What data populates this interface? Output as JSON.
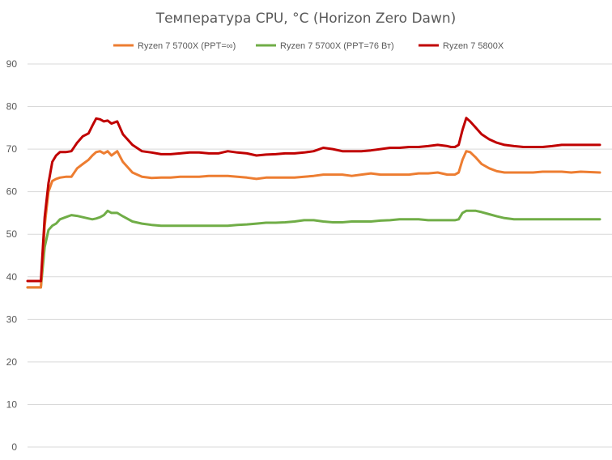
{
  "chart_data": {
    "type": "line",
    "title": "Температура CPU, °C (Horizon Zero Dawn)",
    "xlabel": "",
    "ylabel": "",
    "ylim": [
      0,
      90
    ],
    "yticks": [
      0,
      10,
      20,
      30,
      40,
      50,
      60,
      70,
      80,
      90
    ],
    "grid": true,
    "legend_position": "top",
    "x": [
      0,
      3,
      5,
      7,
      9,
      11,
      13,
      15,
      17,
      20,
      23,
      26,
      29,
      32,
      34,
      36,
      38,
      40,
      42,
      44,
      47,
      50,
      55,
      60,
      65,
      70,
      75,
      80,
      85,
      90,
      95,
      100,
      105,
      110,
      115,
      120,
      125,
      130,
      135,
      140,
      145,
      150,
      155,
      160,
      165,
      170,
      175,
      180,
      185,
      190,
      195,
      200,
      205,
      210,
      215,
      220,
      222,
      224,
      226,
      228,
      230,
      232,
      235,
      238,
      242,
      246,
      250,
      255,
      260,
      265,
      270,
      275,
      280,
      285,
      290,
      300
    ],
    "series": [
      {
        "name": "Ryzen 7 5700X (PPT=∞)",
        "color": "#ed7d31",
        "values": [
          37.5,
          37.5,
          37.5,
          37.5,
          52,
          60,
          62.5,
          63,
          63.3,
          63.5,
          63.5,
          65.5,
          66.5,
          67.5,
          68.5,
          69.3,
          69.5,
          69,
          69.5,
          68.5,
          69.5,
          67,
          64.5,
          63.5,
          63.2,
          63.3,
          63.3,
          63.5,
          63.5,
          63.5,
          63.7,
          63.7,
          63.7,
          63.5,
          63.3,
          63,
          63.3,
          63.3,
          63.3,
          63.3,
          63.5,
          63.7,
          64,
          64,
          64,
          63.7,
          64,
          64.3,
          64,
          64,
          64,
          64,
          64.3,
          64.3,
          64.5,
          64,
          64,
          64,
          64.5,
          67.5,
          69.5,
          69.3,
          68,
          66.5,
          65.5,
          64.8,
          64.5,
          64.5,
          64.5,
          64.5,
          64.7,
          64.7,
          64.7,
          64.5,
          64.7,
          64.5
        ]
      },
      {
        "name": "Ryzen 7 5700X (PPT=76 Вт)",
        "color": "#70ad47",
        "values": [
          37.5,
          37.5,
          37.5,
          37.5,
          47,
          51,
          52,
          52.5,
          53.5,
          54,
          54.5,
          54.3,
          54,
          53.7,
          53.5,
          53.7,
          54,
          54.5,
          55.5,
          55,
          55,
          54.2,
          53,
          52.5,
          52.2,
          52,
          52,
          52,
          52,
          52,
          52,
          52,
          52,
          52.2,
          52.3,
          52.5,
          52.7,
          52.7,
          52.8,
          53,
          53.3,
          53.3,
          53,
          52.8,
          52.8,
          53,
          53,
          53,
          53.2,
          53.3,
          53.5,
          53.5,
          53.5,
          53.3,
          53.3,
          53.3,
          53.3,
          53.3,
          53.5,
          55,
          55.5,
          55.5,
          55.5,
          55.2,
          54.7,
          54.2,
          53.8,
          53.5,
          53.5,
          53.5,
          53.5,
          53.5,
          53.5,
          53.5,
          53.5,
          53.5
        ]
      },
      {
        "name": "Ryzen 7 5800X",
        "color": "#c00000",
        "values": [
          39,
          39,
          39,
          39,
          54,
          62,
          67,
          68.5,
          69.3,
          69.3,
          69.5,
          71.5,
          73,
          73.7,
          75.5,
          77.2,
          77,
          76.5,
          76.7,
          76,
          76.5,
          73.5,
          71,
          69.5,
          69.2,
          68.8,
          68.8,
          69,
          69.2,
          69.2,
          69,
          69,
          69.5,
          69.2,
          69,
          68.5,
          68.7,
          68.8,
          69,
          69,
          69.2,
          69.5,
          70.3,
          70,
          69.5,
          69.5,
          69.5,
          69.7,
          70,
          70.3,
          70.3,
          70.5,
          70.5,
          70.7,
          71,
          70.7,
          70.5,
          70.5,
          71,
          74.5,
          77.3,
          76.5,
          75,
          73.5,
          72.3,
          71.5,
          71,
          70.7,
          70.5,
          70.5,
          70.5,
          70.7,
          71,
          71,
          71,
          71
        ]
      }
    ]
  }
}
